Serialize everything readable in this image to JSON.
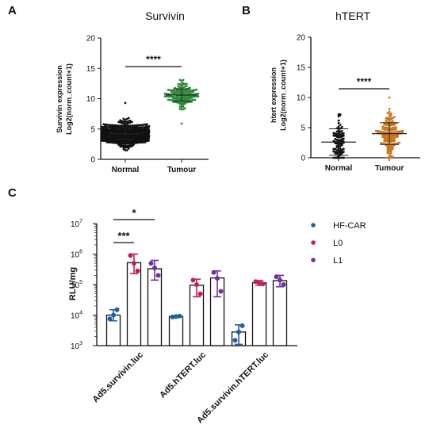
{
  "panel_labels": {
    "a": "A",
    "b": "B",
    "c": "C"
  },
  "colors": {
    "normal_dots": "#111111",
    "survivin_tumour": "#2e8b3a",
    "htert_tumour": "#c8771f",
    "hf_car": "#1f5fa3",
    "l0": "#c4204f",
    "l1": "#7030a0",
    "axis": "#111111"
  },
  "chart_data": [
    {
      "type": "scatter",
      "panel": "A",
      "title": "Survivin",
      "ylabel_line1": "Survivin expression",
      "ylabel_line2": "Log2(norm_count+1)",
      "ylim": [
        0,
        20
      ],
      "yticks": [
        "0",
        "5",
        "10",
        "15",
        "20"
      ],
      "categories": [
        "Normal",
        "Tumour"
      ],
      "series": [
        {
          "category": "Normal",
          "mean": 4.2,
          "sd": 0.9,
          "min": 1.5,
          "max": 9.3,
          "n": 700,
          "color": "#111111"
        },
        {
          "category": "Tumour",
          "mean": 10.6,
          "sd": 1.0,
          "min": 5.9,
          "max": 13.1,
          "n": 160,
          "color": "#2e8b3a"
        }
      ],
      "significance": "****",
      "grid": false
    },
    {
      "type": "scatter",
      "panel": "B",
      "title": "hTERT",
      "ylabel_line1": "htert expression",
      "ylabel_line2": "Log2(norm_count+1)",
      "ylim": [
        0,
        20
      ],
      "yticks": [
        "0",
        "5",
        "10",
        "15",
        "20"
      ],
      "categories": [
        "Normal",
        "Tumour"
      ],
      "series": [
        {
          "category": "Normal",
          "mean": 2.6,
          "sd": 2.2,
          "min": 0,
          "max": 7.2,
          "n": 110,
          "color": "#111111"
        },
        {
          "category": "Tumour",
          "mean": 4.0,
          "sd": 1.8,
          "min": 0,
          "max": 10.0,
          "n": 160,
          "color": "#c8771f"
        }
      ],
      "significance": "****",
      "grid": false
    },
    {
      "type": "bar",
      "panel": "C",
      "ylabel": "RLU/mg",
      "yscale": "log",
      "ylim": [
        1000,
        10000000
      ],
      "yticks": [
        {
          "base": "10",
          "exp": "3"
        },
        {
          "base": "10",
          "exp": "4"
        },
        {
          "base": "10",
          "exp": "5"
        },
        {
          "base": "10",
          "exp": "6"
        },
        {
          "base": "10",
          "exp": "7"
        }
      ],
      "categories": [
        "Ad5.survivin.luc",
        "Ad5.hTERT.luc",
        "Ad5.survivin.hTERT.luc"
      ],
      "legend_position": "right",
      "series": [
        {
          "name": "HF-CAR",
          "color": "#1f5fa3",
          "values": [
            10000,
            9000,
            2800
          ],
          "err_low": [
            6500,
            8400,
            1100
          ],
          "err_high": [
            15000,
            9500,
            4800
          ],
          "points": [
            [
              7500,
              10000,
              15000
            ],
            [
              8700,
              9000,
              9300
            ],
            [
              1500,
              2800,
              4500
            ]
          ]
        },
        {
          "name": "L0",
          "color": "#c4204f",
          "values": [
            520000,
            95000,
            115000
          ],
          "err_low": [
            230000,
            40000,
            95000
          ],
          "err_high": [
            1000000,
            150000,
            135000
          ],
          "points": [
            [
              900000,
              500000,
              280000
            ],
            [
              140000,
              100000,
              50000
            ],
            [
              125000,
              115000,
              105000
            ]
          ]
        },
        {
          "name": "L1",
          "color": "#7030a0",
          "values": [
            330000,
            165000,
            135000
          ],
          "err_low": [
            140000,
            40000,
            85000
          ],
          "err_high": [
            620000,
            280000,
            200000
          ],
          "points": [
            [
              500000,
              350000,
              200000
            ],
            [
              250000,
              160000,
              60000
            ],
            [
              180000,
              140000,
              100000
            ]
          ]
        }
      ],
      "significance": [
        {
          "label": "***",
          "from_series": 0,
          "to_series": 1,
          "category": 0
        },
        {
          "label": "*",
          "from_series": 0,
          "to_series": 2,
          "category": 0
        }
      ],
      "grid": false
    }
  ]
}
